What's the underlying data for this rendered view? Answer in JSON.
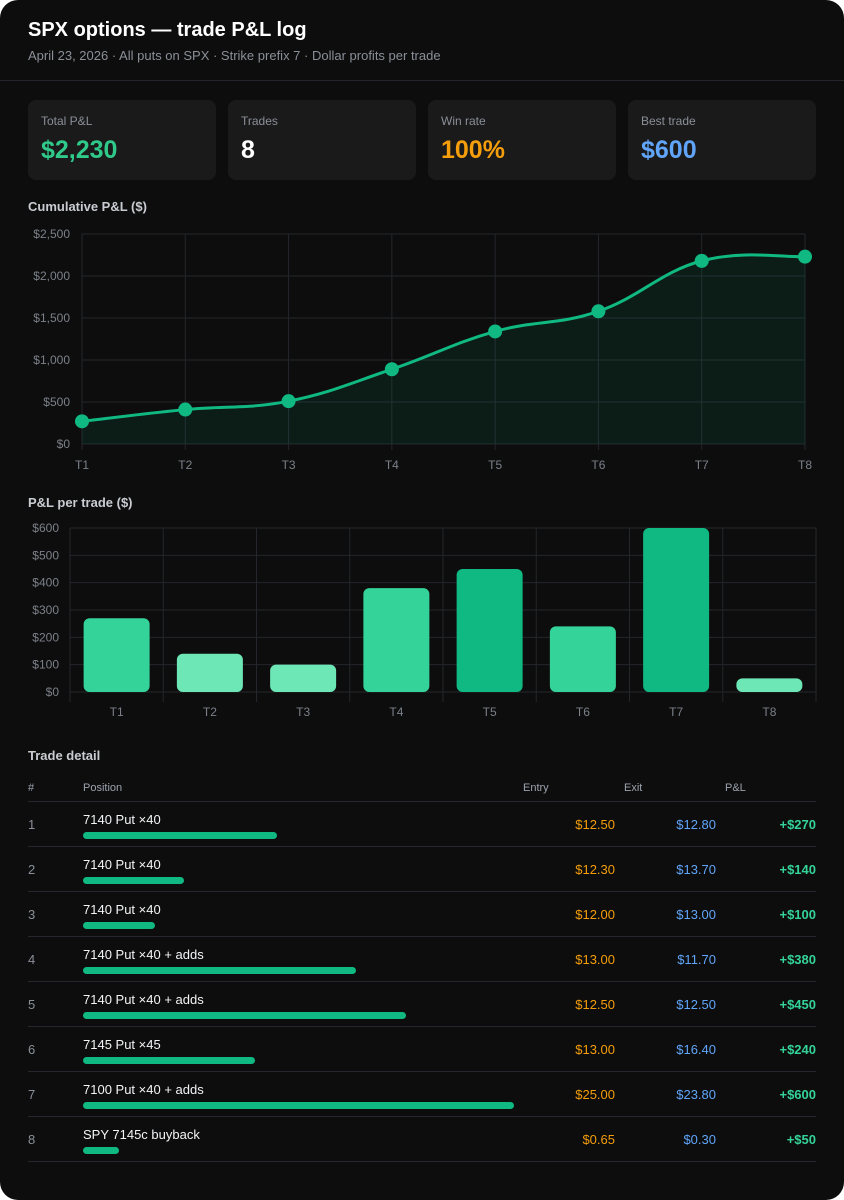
{
  "header": {
    "title": "SPX options — trade P&L log",
    "subtitle": "April 23, 2026 · All puts on SPX · Strike prefix 7 · Dollar profits per trade"
  },
  "stats": [
    {
      "label": "Total P&L",
      "value": "$2,230",
      "color": "#2fc98a"
    },
    {
      "label": "Trades",
      "value": "8",
      "color": "#ffffff"
    },
    {
      "label": "Win rate",
      "value": "100%",
      "color": "#f59e0b"
    },
    {
      "label": "Best trade",
      "value": "$600",
      "color": "#60a5fa"
    }
  ],
  "sections": {
    "cumulative": "Cumulative P&L ($)",
    "per_trade": "P&L per trade ($)",
    "detail": "Trade detail"
  },
  "table": {
    "headers": {
      "num": "#",
      "position": "Position",
      "entry": "Entry",
      "exit": "Exit",
      "pnl": "P&L"
    },
    "rows": [
      {
        "num": "1",
        "position": "7140 Put ×40",
        "entry": "$12.50",
        "exit": "$12.80",
        "pnl": "+$270",
        "value": 270
      },
      {
        "num": "2",
        "position": "7140 Put ×40",
        "entry": "$12.30",
        "exit": "$13.70",
        "pnl": "+$140",
        "value": 140
      },
      {
        "num": "3",
        "position": "7140 Put ×40",
        "entry": "$12.00",
        "exit": "$13.00",
        "pnl": "+$100",
        "value": 100
      },
      {
        "num": "4",
        "position": "7140 Put ×40 + adds",
        "entry": "$13.00",
        "exit": "$11.70",
        "pnl": "+$380",
        "value": 380
      },
      {
        "num": "5",
        "position": "7140 Put ×40 + adds",
        "entry": "$12.50",
        "exit": "$12.50",
        "pnl": "+$450",
        "value": 450
      },
      {
        "num": "6",
        "position": "7145 Put ×45",
        "entry": "$13.00",
        "exit": "$16.40",
        "pnl": "+$240",
        "value": 240
      },
      {
        "num": "7",
        "position": "7100 Put ×40 + adds",
        "entry": "$25.00",
        "exit": "$23.80",
        "pnl": "+$600",
        "value": 600
      },
      {
        "num": "8",
        "position": "SPY 7145c buyback",
        "entry": "$0.65",
        "exit": "$0.30",
        "pnl": "+$50",
        "value": 50
      }
    ]
  },
  "chart_data": [
    {
      "type": "area",
      "title": "Cumulative P&L ($)",
      "categories": [
        "T1",
        "T2",
        "T3",
        "T4",
        "T5",
        "T6",
        "T7",
        "T8"
      ],
      "values": [
        270,
        410,
        510,
        890,
        1340,
        1580,
        2180,
        2230
      ],
      "ylim": [
        0,
        2500
      ],
      "yticks": [
        0,
        500,
        1000,
        1500,
        2000,
        2500
      ],
      "ytick_labels": [
        "$0",
        "$500",
        "$1,000",
        "$1,500",
        "$2,000",
        "$2,500"
      ],
      "grid": true,
      "color": "#10b981"
    },
    {
      "type": "bar",
      "title": "P&L per trade ($)",
      "categories": [
        "T1",
        "T2",
        "T3",
        "T4",
        "T5",
        "T6",
        "T7",
        "T8"
      ],
      "values": [
        270,
        140,
        100,
        380,
        450,
        240,
        600,
        50
      ],
      "ylim": [
        0,
        600
      ],
      "yticks": [
        0,
        100,
        200,
        300,
        400,
        500,
        600
      ],
      "ytick_labels": [
        "$0",
        "$100",
        "$200",
        "$300",
        "$400",
        "$500",
        "$600"
      ],
      "grid": true,
      "colors": {
        "high": "#10b981",
        "mid": "#34d399",
        "low": "#6ee7b7"
      }
    }
  ]
}
